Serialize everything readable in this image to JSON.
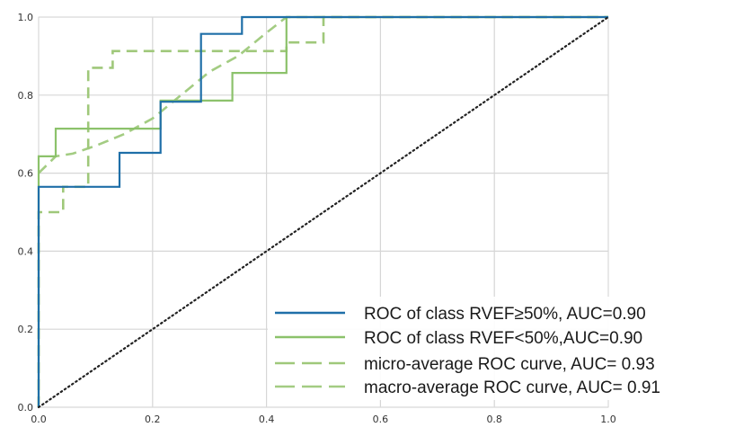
{
  "chart_data": {
    "type": "line",
    "title": "",
    "xlabel": "",
    "ylabel": "",
    "xlim": [
      0.0,
      1.0
    ],
    "ylim": [
      0.0,
      1.0
    ],
    "grid": true,
    "legend_position": "lower-right",
    "x_ticks": [
      "0.0",
      "0.2",
      "0.4",
      "0.6",
      "0.8",
      "1.0"
    ],
    "y_ticks": [
      "0.0",
      "0.2",
      "0.4",
      "0.6",
      "0.8",
      "1.0"
    ],
    "diagonal": {
      "x": [
        0,
        1
      ],
      "y": [
        0,
        1
      ],
      "style": "dotted",
      "color": "#222222"
    },
    "series": [
      {
        "name": "ROC of class RVEF≥50%, AUC=0.90",
        "color": "#1f6fa8",
        "style": "solid",
        "x": [
          0.0,
          0.0,
          0.142,
          0.142,
          0.214,
          0.214,
          0.285,
          0.285,
          0.357,
          0.357,
          1.0
        ],
        "y": [
          0.0,
          0.565,
          0.565,
          0.652,
          0.652,
          0.783,
          0.783,
          0.957,
          0.957,
          1.0,
          1.0
        ]
      },
      {
        "name": "ROC of class RVEF<50%,AUC=0.90",
        "color": "#8cc26b",
        "style": "solid",
        "x": [
          0.0,
          0.0,
          0.03,
          0.03,
          0.214,
          0.214,
          0.34,
          0.34,
          0.435,
          0.435,
          1.0
        ],
        "y": [
          0.0,
          0.643,
          0.643,
          0.714,
          0.714,
          0.786,
          0.786,
          0.857,
          0.857,
          1.0,
          1.0
        ]
      },
      {
        "name": "micro-average ROC curve, AUC= 0.93",
        "color": "#9fc87a",
        "style": "dashed",
        "x": [
          0.0,
          0.0,
          0.043,
          0.043,
          0.087,
          0.087,
          0.087,
          0.13,
          0.13,
          0.435,
          0.435,
          0.5,
          0.5,
          1.0
        ],
        "y": [
          0.0,
          0.5,
          0.5,
          0.565,
          0.565,
          0.87,
          0.87,
          0.87,
          0.913,
          0.913,
          0.935,
          0.935,
          1.0,
          1.0
        ]
      },
      {
        "name": "macro-average ROC curve, AUC= 0.91",
        "color": "#a3cc82",
        "style": "dashed",
        "x": [
          0.0,
          0.03,
          0.06,
          0.1,
          0.15,
          0.2,
          0.25,
          0.3,
          0.35,
          0.4,
          0.435,
          1.0
        ],
        "y": [
          0.6,
          0.643,
          0.65,
          0.67,
          0.7,
          0.74,
          0.8,
          0.86,
          0.9,
          0.96,
          1.0,
          1.0
        ]
      }
    ]
  }
}
